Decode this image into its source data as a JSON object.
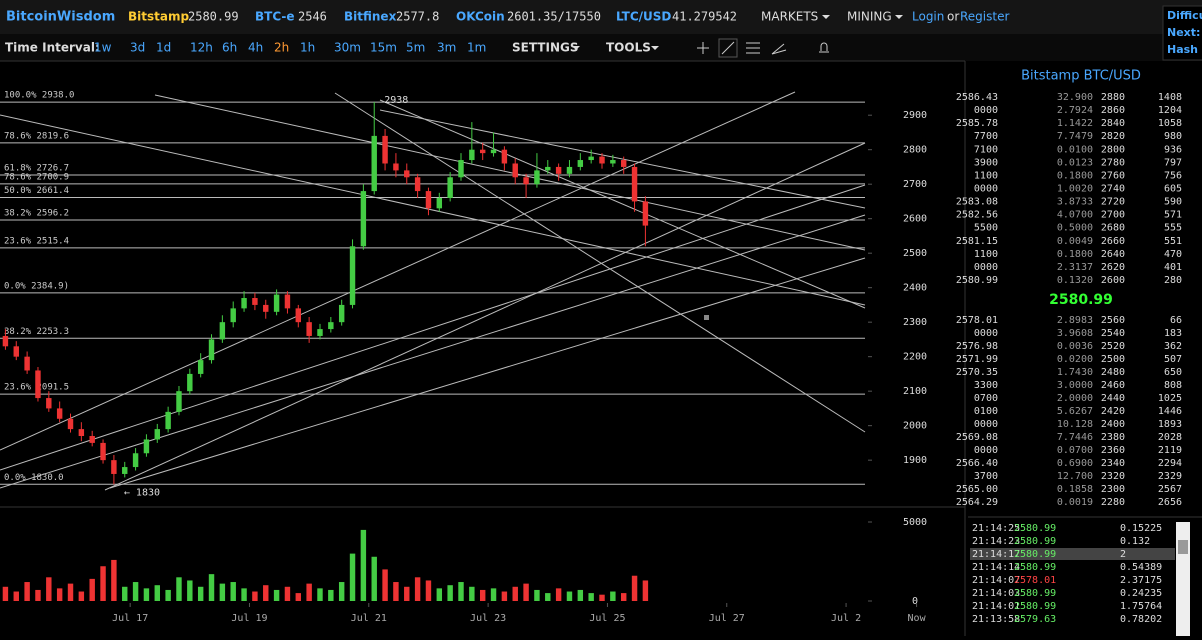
{
  "header": {
    "brand": "BitcoinWisdom",
    "tickers": [
      {
        "name": "Bitstamp",
        "value": "2580.99"
      },
      {
        "name": "BTC-e",
        "value": "2546"
      },
      {
        "name": "Bitfinex",
        "value": "2577.8"
      },
      {
        "name": "OKCoin",
        "value": "2601.35/17550"
      },
      {
        "name": "LTC/USD",
        "value": "41.279542"
      }
    ],
    "menus": [
      "MARKETS",
      "MINING"
    ],
    "login": "Login",
    "or": "or",
    "register": "Register",
    "side": [
      "Difficu",
      "Next:",
      "Hash R"
    ]
  },
  "toolbar": {
    "label": "Time Interval:",
    "intervals": [
      "1w",
      "3d",
      "1d",
      "12h",
      "6h",
      "4h",
      "2h",
      "1h",
      "30m",
      "15m",
      "5m",
      "3m",
      "1m"
    ],
    "active": "2h",
    "settings": "SETTINGS",
    "tools": "TOOLS"
  },
  "chart_data": {
    "type": "candlestick",
    "xlim": [
      -0.5,
      84.5
    ],
    "ylim": [
      1770,
      3060
    ],
    "yticks": [
      1900,
      2000,
      2100,
      2200,
      2300,
      2400,
      2500,
      2600,
      2700,
      2800,
      2900
    ],
    "xticks": [
      {
        "value": 11.5,
        "label": "Jul 17"
      },
      {
        "value": 22.5,
        "label": "Jul 19"
      },
      {
        "value": 33.5,
        "label": "Jul 21"
      },
      {
        "value": 44.5,
        "label": "Jul 23"
      },
      {
        "value": 55.5,
        "label": "Jul 25"
      },
      {
        "value": 66.5,
        "label": "Jul 27"
      },
      {
        "value": 77.5,
        "label": "Jul 2"
      },
      {
        "value": 84,
        "label": "Now"
      }
    ],
    "up_color": "#44cc44",
    "down_color": "#ee3333",
    "candles": [
      [
        2260,
        2280,
        2220,
        2230
      ],
      [
        2230,
        2245,
        2190,
        2200
      ],
      [
        2200,
        2215,
        2150,
        2160
      ],
      [
        2160,
        2170,
        2070,
        2080
      ],
      [
        2080,
        2100,
        2040,
        2050
      ],
      [
        2050,
        2070,
        2010,
        2020
      ],
      [
        2020,
        2035,
        1980,
        1990
      ],
      [
        1990,
        2010,
        1955,
        1970
      ],
      [
        1970,
        1985,
        1940,
        1950
      ],
      [
        1950,
        1960,
        1890,
        1900
      ],
      [
        1900,
        1915,
        1830,
        1860
      ],
      [
        1860,
        1895,
        1850,
        1880
      ],
      [
        1880,
        1935,
        1870,
        1920
      ],
      [
        1920,
        1975,
        1910,
        1960
      ],
      [
        1960,
        2005,
        1950,
        1990
      ],
      [
        1990,
        2055,
        1980,
        2040
      ],
      [
        2040,
        2115,
        2030,
        2100
      ],
      [
        2100,
        2165,
        2090,
        2150
      ],
      [
        2150,
        2210,
        2140,
        2190
      ],
      [
        2190,
        2265,
        2180,
        2250
      ],
      [
        2250,
        2320,
        2240,
        2300
      ],
      [
        2300,
        2360,
        2285,
        2340
      ],
      [
        2340,
        2390,
        2330,
        2370
      ],
      [
        2370,
        2385,
        2335,
        2350
      ],
      [
        2350,
        2365,
        2310,
        2330
      ],
      [
        2330,
        2395,
        2320,
        2380
      ],
      [
        2380,
        2390,
        2325,
        2340
      ],
      [
        2340,
        2350,
        2285,
        2300
      ],
      [
        2300,
        2315,
        2240,
        2260
      ],
      [
        2260,
        2295,
        2250,
        2280
      ],
      [
        2280,
        2315,
        2270,
        2300
      ],
      [
        2300,
        2365,
        2290,
        2350
      ],
      [
        2350,
        2540,
        2340,
        2520
      ],
      [
        2520,
        2700,
        2510,
        2680
      ],
      [
        2680,
        2938,
        2670,
        2840
      ],
      [
        2840,
        2860,
        2740,
        2760
      ],
      [
        2760,
        2790,
        2720,
        2740
      ],
      [
        2740,
        2760,
        2700,
        2720
      ],
      [
        2720,
        2730,
        2660,
        2680
      ],
      [
        2680,
        2690,
        2610,
        2630
      ],
      [
        2630,
        2675,
        2620,
        2660
      ],
      [
        2660,
        2735,
        2650,
        2720
      ],
      [
        2720,
        2790,
        2710,
        2770
      ],
      [
        2770,
        2880,
        2760,
        2800
      ],
      [
        2800,
        2820,
        2770,
        2790
      ],
      [
        2790,
        2850,
        2780,
        2800
      ],
      [
        2800,
        2810,
        2740,
        2760
      ],
      [
        2760,
        2775,
        2700,
        2720
      ],
      [
        2720,
        2730,
        2660,
        2700
      ],
      [
        2700,
        2790,
        2690,
        2740
      ],
      [
        2740,
        2770,
        2730,
        2750
      ],
      [
        2750,
        2760,
        2710,
        2730
      ],
      [
        2730,
        2770,
        2720,
        2750
      ],
      [
        2750,
        2790,
        2740,
        2770
      ],
      [
        2770,
        2800,
        2760,
        2780
      ],
      [
        2780,
        2790,
        2745,
        2760
      ],
      [
        2760,
        2785,
        2750,
        2770
      ],
      [
        2770,
        2780,
        2730,
        2750
      ],
      [
        2750,
        2760,
        2620,
        2650
      ],
      [
        2650,
        2665,
        2520,
        2580
      ]
    ],
    "volume": [
      900,
      600,
      1200,
      700,
      1500,
      800,
      1100,
      600,
      1400,
      2200,
      2600,
      900,
      1200,
      800,
      1000,
      700,
      1500,
      1300,
      900,
      1700,
      1100,
      1200,
      800,
      600,
      1000,
      700,
      900,
      500,
      1100,
      800,
      700,
      1200,
      3000,
      4500,
      2800,
      2000,
      1200,
      900,
      1500,
      1300,
      800,
      1000,
      1200,
      900,
      700,
      800,
      600,
      900,
      1100,
      700,
      500,
      800,
      600,
      700,
      500,
      400,
      600,
      500,
      1600,
      1300
    ],
    "volume_ylim": [
      0,
      5760
    ],
    "volume_yticks": [
      0,
      5000
    ],
    "fib_levels": [
      {
        "label": "100.0% 2938.0",
        "value": 2938
      },
      {
        "label": "78.6% 2819.6",
        "value": 2819.6
      },
      {
        "label": "61.8% 2726.7",
        "value": 2726.7
      },
      {
        "label": "78.6% 2700.9",
        "value": 2700.9
      },
      {
        "label": "50.0% 2661.4",
        "value": 2661.4
      },
      {
        "label": "38.2% 2596.2",
        "value": 2596.2
      },
      {
        "label": "23.6% 2515.4",
        "value": 2515.4
      },
      {
        "label": "0.0% 2384.9)",
        "value": 2384.9
      },
      {
        "label": "38.2% 2253.3",
        "value": 2253.3
      },
      {
        "label": "23.6% 2091.5",
        "value": 2091.5
      },
      {
        "label": "0.0% 1830.0",
        "value": 1830
      }
    ],
    "annotations": [
      {
        "text": "2938",
        "value": 2938,
        "index": 34
      },
      {
        "text": "← 1830",
        "value": 1830,
        "index": 10
      }
    ]
  },
  "orderbook": {
    "title": "Bitstamp BTC/USD",
    "asks": [
      [
        "2586.43",
        "32.900",
        "2880",
        "1408"
      ],
      [
        "0000",
        "2.7924",
        "2860",
        "1204"
      ],
      [
        "2585.78",
        "1.1422",
        "2840",
        "1058"
      ],
      [
        "7700",
        "7.7479",
        "2820",
        "980"
      ],
      [
        "7100",
        "0.0100",
        "2800",
        "936"
      ],
      [
        "3900",
        "0.0123",
        "2780",
        "797"
      ],
      [
        "1100",
        "0.1800",
        "2760",
        "756"
      ],
      [
        "0000",
        "1.0020",
        "2740",
        "605"
      ],
      [
        "2583.08",
        "3.8733",
        "2720",
        "590"
      ],
      [
        "2582.56",
        "4.0700",
        "2700",
        "571"
      ],
      [
        "5500",
        "0.5000",
        "2680",
        "555"
      ],
      [
        "2581.15",
        "0.0049",
        "2660",
        "551"
      ],
      [
        "1100",
        "0.1800",
        "2640",
        "470"
      ],
      [
        "0000",
        "2.3137",
        "2620",
        "401"
      ],
      [
        "2580.99",
        "0.1320",
        "2600",
        "280"
      ]
    ],
    "last": "2580.99",
    "bids": [
      [
        "2578.01",
        "2.8983",
        "2560",
        "66"
      ],
      [
        "0000",
        "3.9608",
        "2540",
        "183"
      ],
      [
        "2576.98",
        "0.0036",
        "2520",
        "362"
      ],
      [
        "2571.99",
        "0.0200",
        "2500",
        "507"
      ],
      [
        "2570.35",
        "1.7430",
        "2480",
        "650"
      ],
      [
        "3300",
        "3.0000",
        "2460",
        "808"
      ],
      [
        "0700",
        "2.0000",
        "2440",
        "1025"
      ],
      [
        "0100",
        "5.6267",
        "2420",
        "1446"
      ],
      [
        "0000",
        "10.128",
        "2400",
        "1893"
      ],
      [
        "2569.08",
        "7.7446",
        "2380",
        "2028"
      ],
      [
        "0000",
        "0.0700",
        "2360",
        "2119"
      ],
      [
        "2566.40",
        "0.6900",
        "2340",
        "2294"
      ],
      [
        "3700",
        "12.700",
        "2320",
        "2329"
      ],
      [
        "2565.00",
        "0.1858",
        "2300",
        "2567"
      ],
      [
        "2564.29",
        "0.0019",
        "2280",
        "2656"
      ]
    ]
  },
  "trades": [
    {
      "time": "21:14:25",
      "price": "2580.99",
      "amount": "0.15225",
      "color": "#66ee66"
    },
    {
      "time": "21:14:23",
      "price": "2580.99",
      "amount": "0.132",
      "color": "#66ee66"
    },
    {
      "time": "21:14:17",
      "price": "2580.99",
      "amount": "2",
      "color": "#66ee66",
      "selected": true
    },
    {
      "time": "21:14:14",
      "price": "2580.99",
      "amount": "0.54389",
      "color": "#66ee66"
    },
    {
      "time": "21:14:07",
      "price": "2578.01",
      "amount": "2.37175",
      "color": "#ff4444"
    },
    {
      "time": "21:14:03",
      "price": "2580.99",
      "amount": "0.24235",
      "color": "#66ee66"
    },
    {
      "time": "21:14:01",
      "price": "2580.99",
      "amount": "1.75764",
      "color": "#66ee66"
    },
    {
      "time": "21:13:58",
      "price": "2579.63",
      "amount": "0.78202",
      "color": "#66ee66"
    }
  ]
}
